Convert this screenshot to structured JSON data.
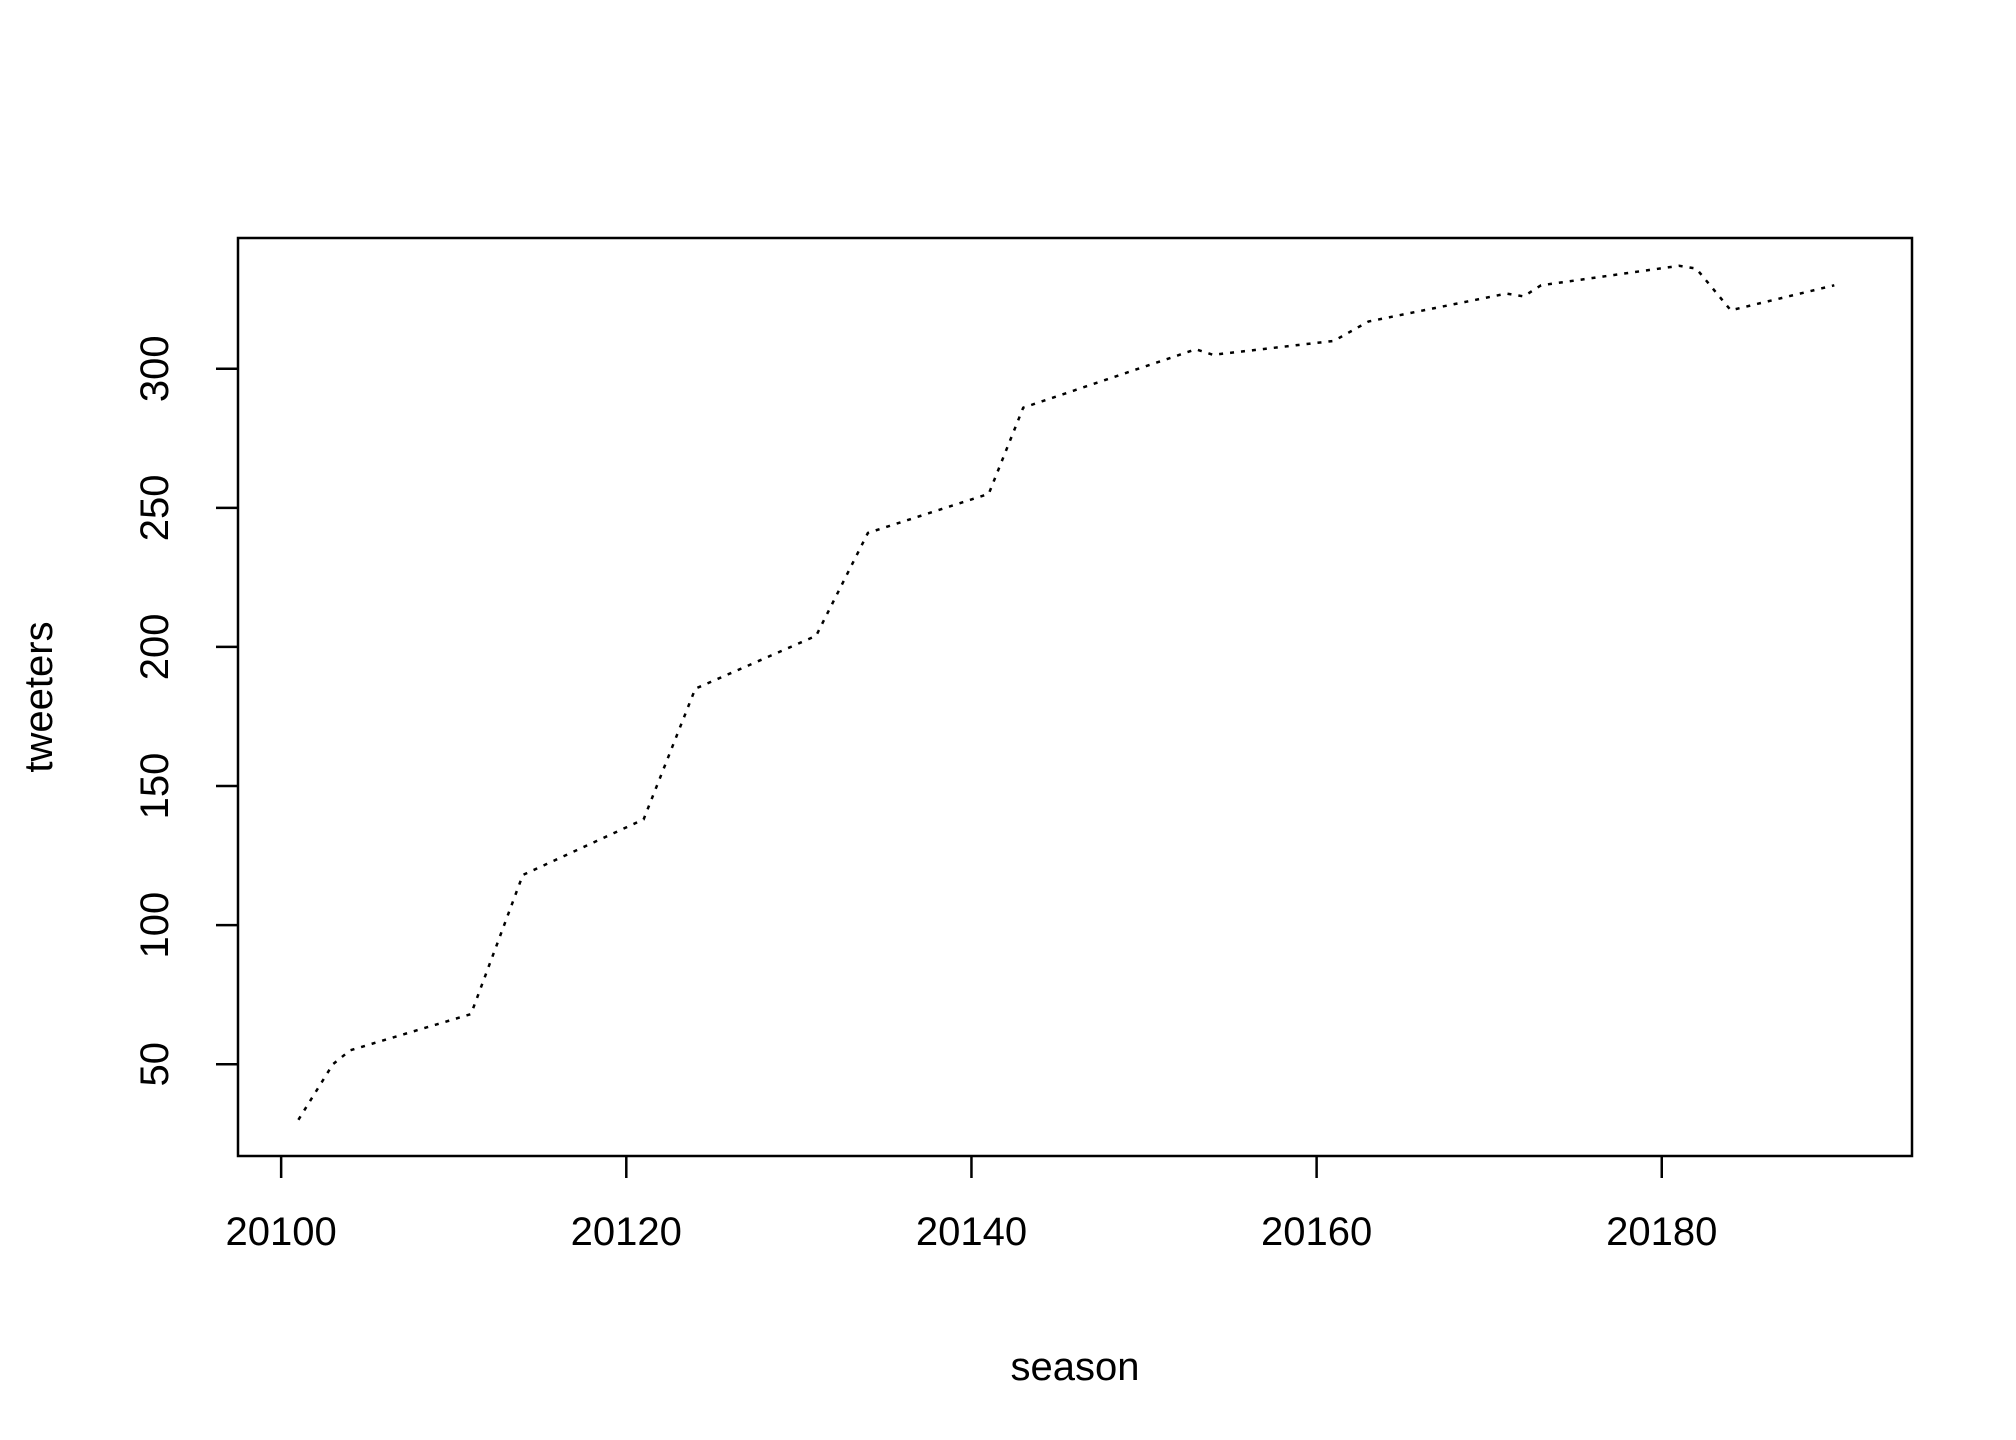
{
  "chart_data": {
    "type": "line",
    "title": "",
    "xlabel": "season",
    "ylabel": "tweeters",
    "xlim": [
      20097.5,
      20194.5
    ],
    "ylim": [
      17,
      347
    ],
    "xticks": [
      20100,
      20120,
      20140,
      20160,
      20180
    ],
    "yticks": [
      50,
      100,
      150,
      200,
      250,
      300
    ],
    "grid": false,
    "legend": "none",
    "line_style": "dotted",
    "line_color": "#000000",
    "series": [
      {
        "x": [
          20101,
          20103,
          20104,
          20111,
          20114,
          20121,
          20124,
          20131,
          20134,
          20141,
          20143,
          20153,
          20154,
          20161,
          20163,
          20171,
          20172,
          20173,
          20181,
          20182,
          20184,
          20190
        ],
        "y": [
          30,
          50,
          55,
          68,
          118,
          138,
          185,
          204,
          241,
          255,
          286,
          307,
          305,
          310,
          317,
          327,
          326,
          330,
          337,
          336,
          321,
          330
        ]
      }
    ]
  }
}
